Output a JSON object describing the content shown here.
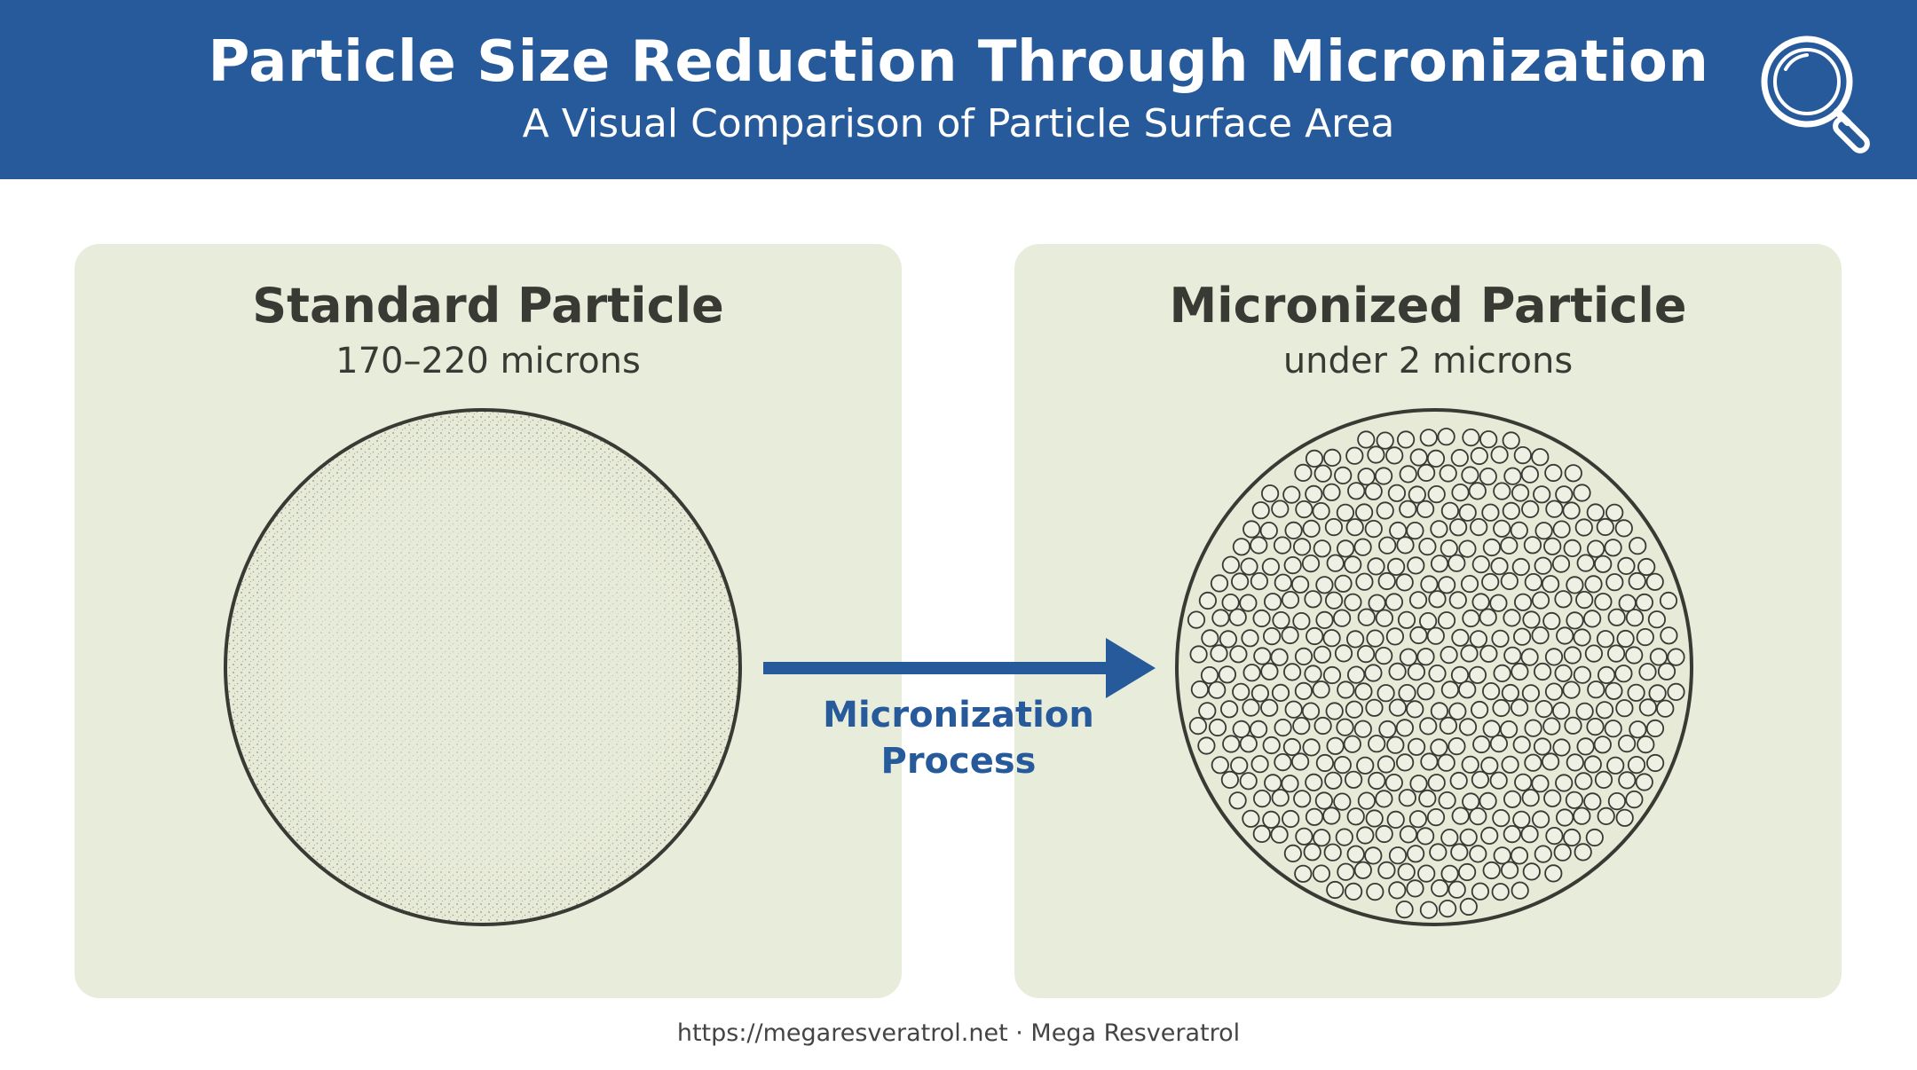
{
  "header": {
    "title": "Particle Size Reduction Through Micronization",
    "subtitle": "A Visual Comparison of Particle Surface Area",
    "icon": "magnifying-glass-icon"
  },
  "left_panel": {
    "title": "Standard Particle",
    "size": "170–220 microns"
  },
  "right_panel": {
    "title": "Micronized Particle",
    "size": "under 2 microns"
  },
  "process": {
    "line1": "Micronization",
    "line2": "Process"
  },
  "footer": {
    "text": "https://megaresveratrol.net · Mega Resveratrol"
  },
  "colors": {
    "header_bg": "#265a9b",
    "panel_bg": "#e8ecdb",
    "accent": "#265a9b",
    "outline": "#3a3a35"
  }
}
